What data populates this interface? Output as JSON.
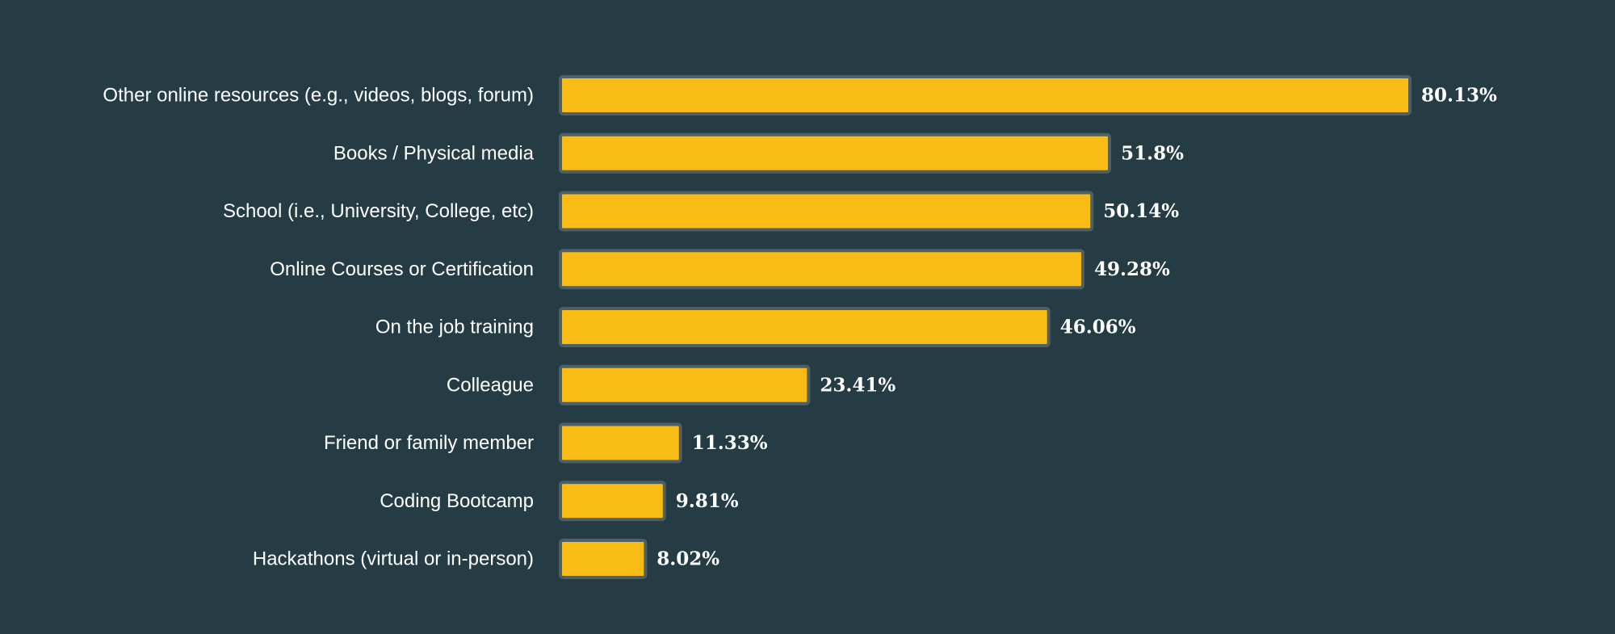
{
  "colors": {
    "background": "#263c45",
    "bar_fill": "#f9bb16",
    "bar_outline": "#4f5f66",
    "text": "#ffffff"
  },
  "chart_data": {
    "type": "bar",
    "orientation": "horizontal",
    "categories": [
      "Other online resources (e.g., videos, blogs, forum)",
      "Books / Physical media",
      "School (i.e., University, College, etc)",
      "Online Courses or Certification",
      "On the job training",
      "Colleague",
      "Friend or family member",
      "Coding Bootcamp",
      "Hackathons (virtual or in-person)"
    ],
    "values": [
      80.13,
      51.8,
      50.14,
      49.28,
      46.06,
      23.41,
      11.33,
      9.81,
      8.02
    ],
    "value_labels": [
      "80.13%",
      "51.8%",
      "50.14%",
      "49.28%",
      "46.06%",
      "23.41%",
      "11.33%",
      "9.81%",
      "8.02%"
    ],
    "xlim": [
      0,
      80.13
    ],
    "grid": false,
    "legend": "none"
  }
}
